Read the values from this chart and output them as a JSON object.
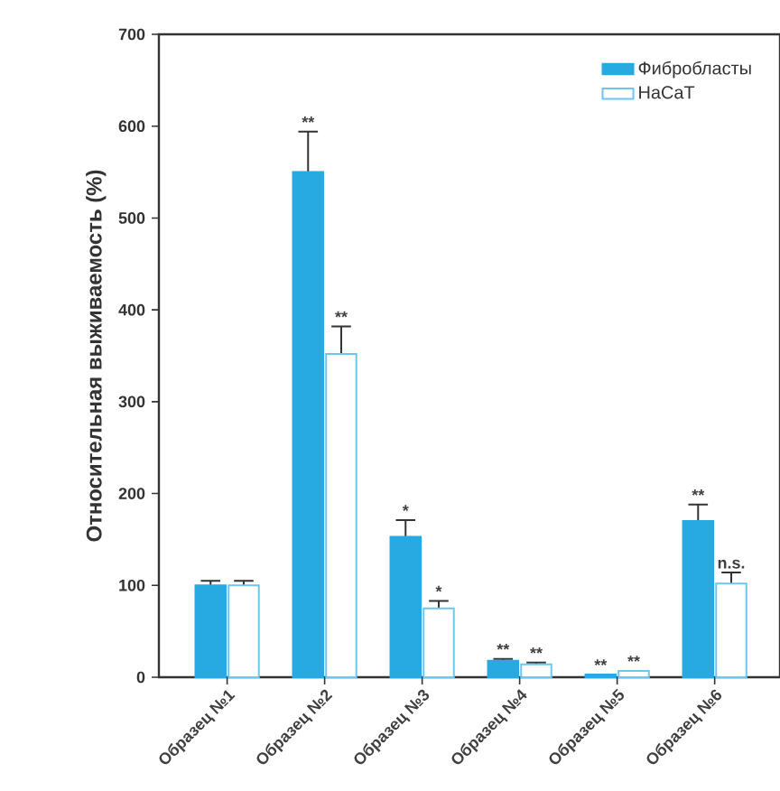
{
  "chart_data": {
    "type": "bar",
    "ylabel": "Относительная выживаемость (%)",
    "categories": [
      "Образец №1",
      "Образец №2",
      "Образец №3",
      "Образец №4",
      "Образец №5",
      "Образец №6"
    ],
    "series": [
      {
        "name": "Фибробласты",
        "color": "#27a9e1",
        "values": [
          100,
          550,
          153,
          18,
          3,
          170
        ],
        "errors": [
          5,
          44,
          18,
          2,
          null,
          18
        ],
        "value_labels": [
          null,
          "**",
          "*",
          "**",
          "**",
          "**"
        ]
      },
      {
        "name": "HaCaT",
        "color": "#6ec6ee",
        "values": [
          100,
          352,
          75,
          14,
          7,
          102
        ],
        "errors": [
          5,
          30,
          8,
          2,
          null,
          12
        ],
        "value_labels": [
          null,
          "**",
          "*",
          "**",
          "**",
          "n.s."
        ]
      }
    ],
    "ylim": [
      0,
      700
    ],
    "yticks": [
      0,
      100,
      200,
      300,
      400,
      500,
      600,
      700
    ],
    "legend": "top right"
  }
}
